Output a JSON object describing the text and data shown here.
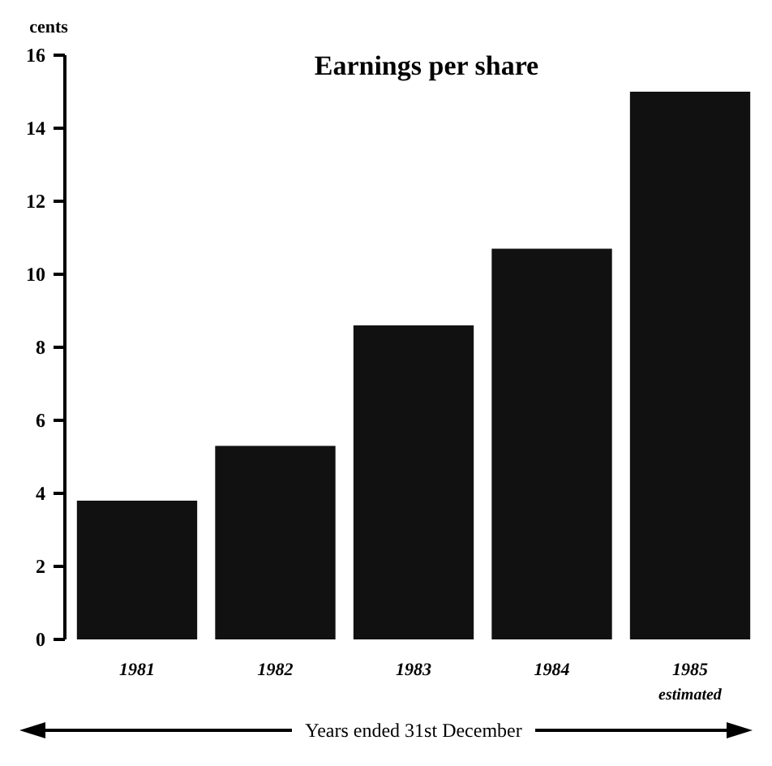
{
  "chart_data": {
    "type": "bar",
    "title": "Earnings per share",
    "ylabel": "cents",
    "xlabel": "Years ended 31st December",
    "categories": [
      "1981",
      "1982",
      "1983",
      "1984",
      "1985"
    ],
    "values": [
      3.8,
      5.3,
      8.6,
      10.7,
      15.0
    ],
    "color": "#111111",
    "ylim": [
      0,
      16
    ],
    "yticks": [
      0,
      2,
      4,
      6,
      8,
      10,
      12,
      14,
      16
    ],
    "annotations": [
      "estimated"
    ]
  }
}
